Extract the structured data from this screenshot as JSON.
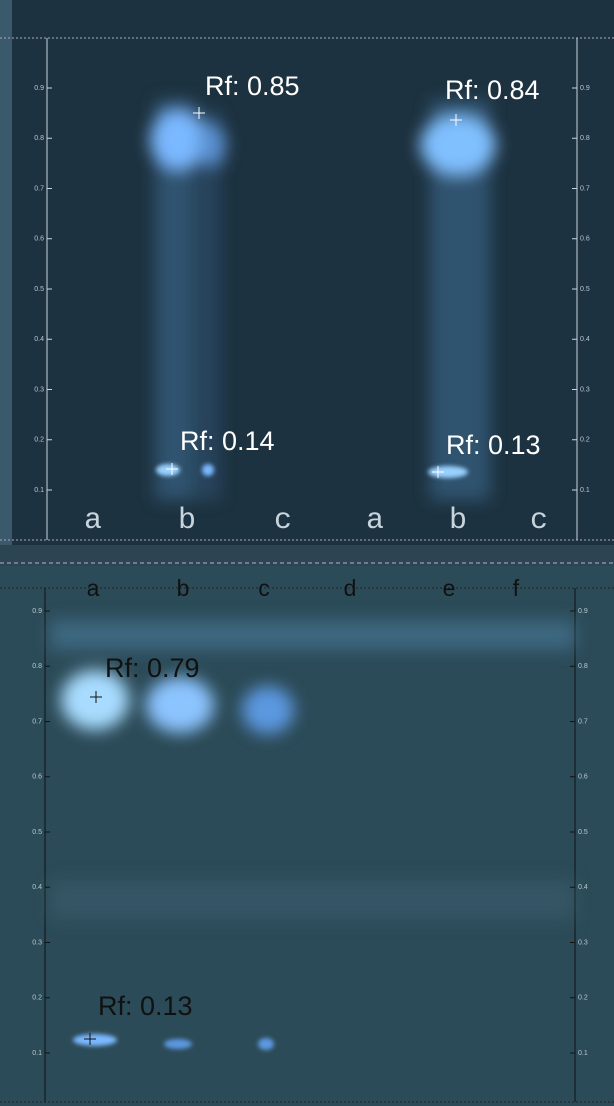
{
  "panels": [
    {
      "scale": [
        "0.1",
        "0.2",
        "0.3",
        "0.4",
        "0.5",
        "0.6",
        "0.7",
        "0.8",
        "0.9"
      ],
      "lanes": [
        "a",
        "b",
        "c",
        "a",
        "b",
        "c"
      ],
      "annotations": [
        "Rf: 0.85",
        "Rf: 0.84",
        "Rf: 0.14",
        "Rf: 0.13"
      ]
    },
    {
      "scale": [
        "0.1",
        "0.2",
        "0.3",
        "0.4",
        "0.5",
        "0.6",
        "0.7",
        "0.8",
        "0.9"
      ],
      "lanes": [
        "a",
        "b",
        "c",
        "d",
        "e",
        "f"
      ],
      "annotations": [
        "Rf: 0.79",
        "Rf: 0.13"
      ]
    }
  ]
}
